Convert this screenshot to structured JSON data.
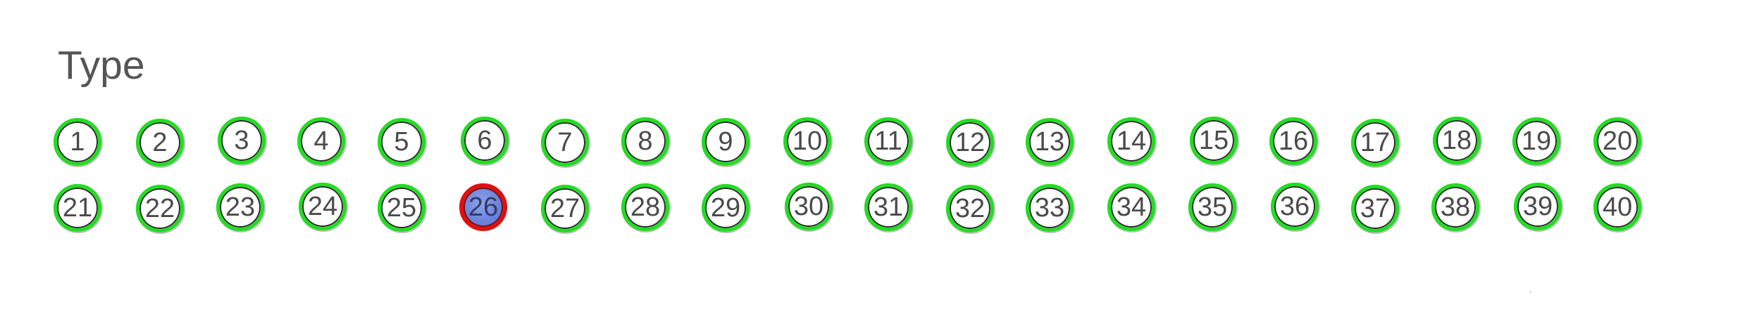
{
  "section": {
    "title": "Type"
  },
  "bubbles": {
    "selected_value": "26",
    "options": [
      {
        "label": "1"
      },
      {
        "label": "2"
      },
      {
        "label": "3"
      },
      {
        "label": "4"
      },
      {
        "label": "5"
      },
      {
        "label": "6"
      },
      {
        "label": "7"
      },
      {
        "label": "8"
      },
      {
        "label": "9"
      },
      {
        "label": "10"
      },
      {
        "label": "11"
      },
      {
        "label": "12"
      },
      {
        "label": "13"
      },
      {
        "label": "14"
      },
      {
        "label": "15"
      },
      {
        "label": "16"
      },
      {
        "label": "17"
      },
      {
        "label": "18"
      },
      {
        "label": "19"
      },
      {
        "label": "20"
      },
      {
        "label": "21"
      },
      {
        "label": "22"
      },
      {
        "label": "23"
      },
      {
        "label": "24"
      },
      {
        "label": "25"
      },
      {
        "label": "26"
      },
      {
        "label": "27"
      },
      {
        "label": "28"
      },
      {
        "label": "29"
      },
      {
        "label": "30"
      },
      {
        "label": "31"
      },
      {
        "label": "32"
      },
      {
        "label": "33"
      },
      {
        "label": "34"
      },
      {
        "label": "35"
      },
      {
        "label": "36"
      },
      {
        "label": "37"
      },
      {
        "label": "38"
      },
      {
        "label": "39"
      },
      {
        "label": "40"
      }
    ]
  },
  "colors": {
    "bubble_ring": "#22dd22",
    "selected_ring": "#dd1111",
    "selected_fill": "#6d84dd",
    "text": "#4a4a4a"
  }
}
